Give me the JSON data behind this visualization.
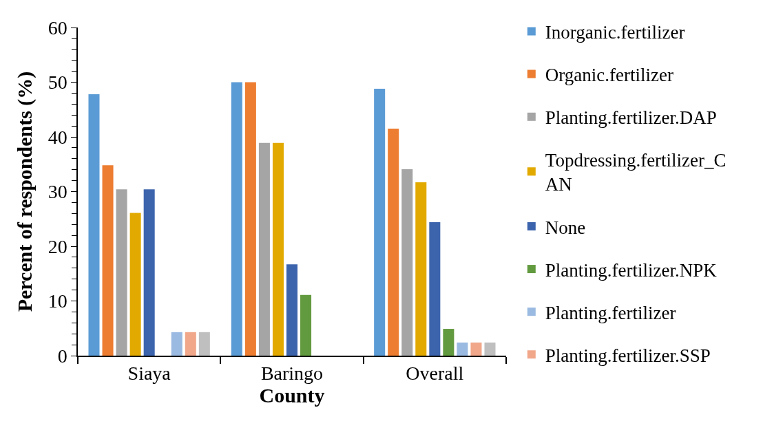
{
  "chart_data": {
    "type": "bar",
    "xlabel": "County",
    "ylabel": "Percent of respondents (%)",
    "categories": [
      "Siaya",
      "Baringo",
      "Overall"
    ],
    "series": [
      {
        "name": "Inorganic.fertilizer",
        "color": "#5b9bd5",
        "values": [
          47.8,
          50,
          48.8
        ]
      },
      {
        "name": "Organic.fertilizer",
        "color": "#ed7d31",
        "values": [
          34.8,
          50,
          41.5
        ]
      },
      {
        "name": "Planting.fertilizer.DAP",
        "color": "#a5a5a5",
        "values": [
          30.4,
          38.9,
          34.1
        ]
      },
      {
        "name": "Topdressing.fertilizer_CAN",
        "color": "#e2aa00",
        "values": [
          26.1,
          38.9,
          31.7
        ]
      },
      {
        "name": "None",
        "color": "#3c64ad",
        "values": [
          30.4,
          16.7,
          24.4
        ]
      },
      {
        "name": "Planting.fertilizer.NPK",
        "color": "#629a3f",
        "values": [
          0,
          11.1,
          4.9
        ]
      },
      {
        "name": "Planting.fertilizer",
        "color": "#9bbae1",
        "values": [
          4.3,
          0,
          2.4
        ]
      },
      {
        "name": "Planting.fertilizer.SSP",
        "color": "#f1a78a",
        "values": [
          4.3,
          0,
          2.4
        ]
      },
      {
        "color": "#bfbfbf",
        "values": [
          4.3,
          0,
          2.4
        ]
      }
    ],
    "ylim": [
      0,
      60
    ],
    "yticks": [
      0,
      {
        "value": 2,
        "label": null
      },
      {
        "value": 4,
        "label": null
      },
      {
        "value": 6,
        "label": null
      },
      {
        "value": 8,
        "label": null
      },
      10,
      {
        "value": 12,
        "label": null
      },
      {
        "value": 14,
        "label": null
      },
      {
        "value": 16,
        "label": null
      },
      {
        "value": 18,
        "label": null
      },
      20,
      {
        "value": 22,
        "label": null
      },
      {
        "value": 24,
        "label": null
      },
      {
        "value": 26,
        "label": null
      },
      {
        "value": 28,
        "label": null
      },
      30,
      {
        "value": 32,
        "label": null
      },
      {
        "value": 34,
        "label": null
      },
      {
        "value": 36,
        "label": null
      },
      {
        "value": 38,
        "label": null
      },
      40,
      {
        "value": 42,
        "label": null
      },
      {
        "value": 44,
        "label": null
      },
      {
        "value": 46,
        "label": null
      },
      {
        "value": 48,
        "label": null
      },
      50,
      {
        "value": 52,
        "label": null
      },
      {
        "value": 54,
        "label": null
      },
      {
        "value": 56,
        "label": null
      },
      {
        "value": 58,
        "label": null
      },
      60
    ],
    "legend": "right"
  }
}
